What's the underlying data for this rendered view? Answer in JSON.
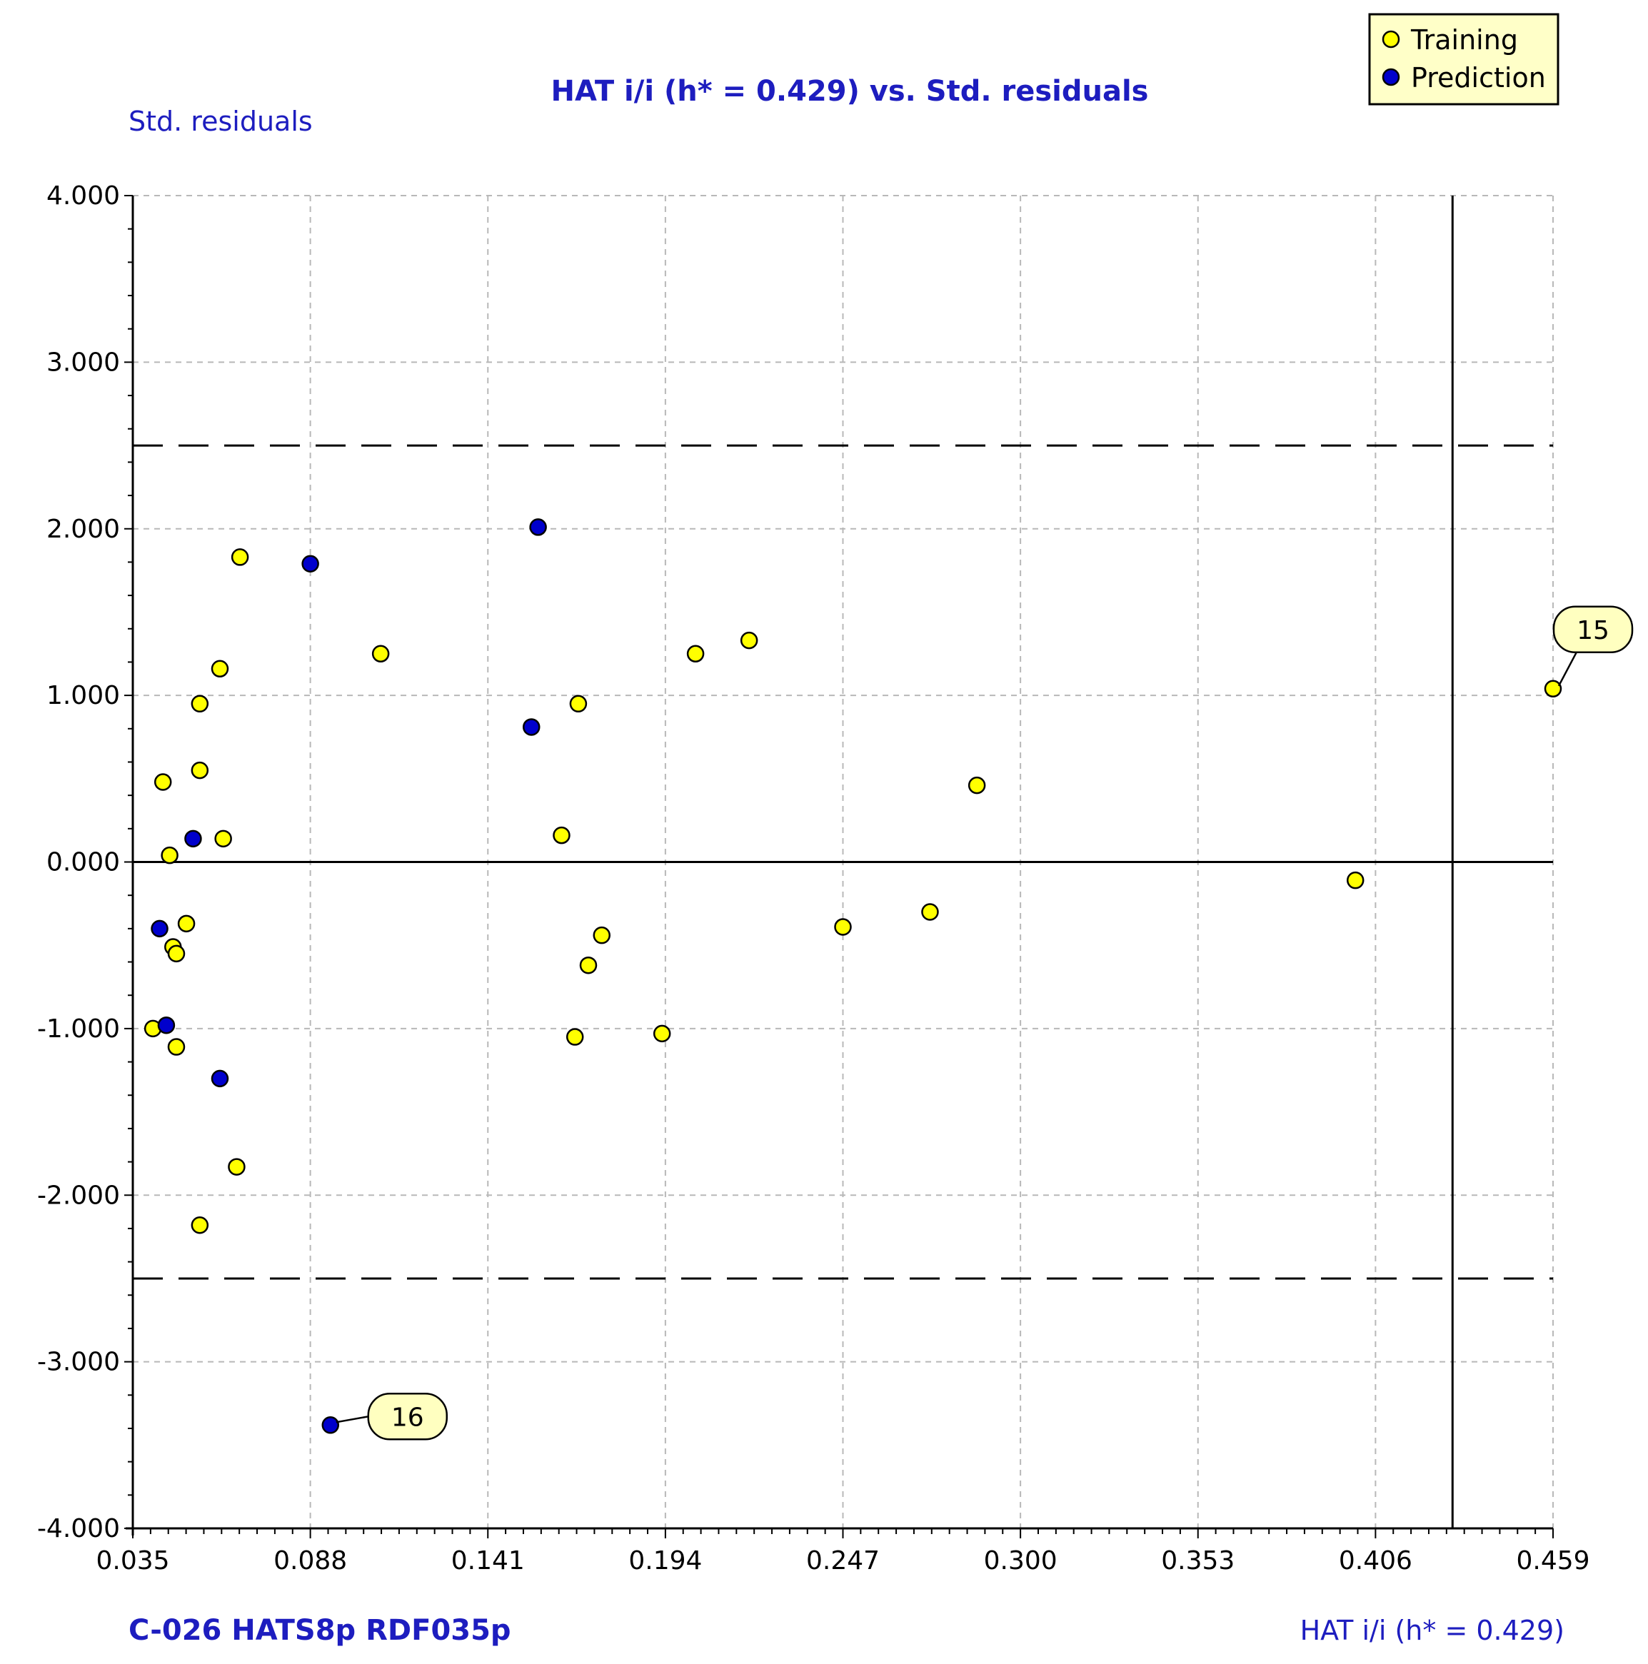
{
  "chart_data": {
    "type": "scatter",
    "title": "HAT i/i (h* = 0.429) vs. Std. residuals",
    "ylabel": "Std. residuals",
    "xlabel": "HAT i/i (h* = 0.429)",
    "model_label": "C-026  HATS8p  RDF035p",
    "xlim": [
      0.035,
      0.459
    ],
    "ylim": [
      -4.0,
      4.0
    ],
    "x_ticks": [
      "0.035",
      "0.088",
      "0.141",
      "0.194",
      "0.247",
      "0.300",
      "0.353",
      "0.406",
      "0.459"
    ],
    "x_tick_values": [
      0.035,
      0.088,
      0.141,
      0.194,
      0.247,
      0.3,
      0.353,
      0.406,
      0.459
    ],
    "y_ticks": [
      "4.000",
      "3.000",
      "2.000",
      "1.000",
      "0.000",
      "-1.000",
      "-2.000",
      "-3.000",
      "-4.000"
    ],
    "y_tick_values": [
      4.0,
      3.0,
      2.0,
      1.0,
      0.0,
      -1.0,
      -2.0,
      -3.0,
      -4.0
    ],
    "grid": true,
    "legend_position": "top-right",
    "reference_lines": {
      "residual_limits": [
        2.5,
        -2.5
      ],
      "h_star": 0.429
    },
    "colors": {
      "training": "#ffff00",
      "prediction": "#0000cc",
      "title": "#1d1dbf",
      "grid": "#b8b8b8",
      "callout": "#ffffc0"
    },
    "series": [
      {
        "name": "Training",
        "points": [
          {
            "x": 0.459,
            "y": 1.04,
            "label": "15"
          },
          {
            "x": 0.067,
            "y": 1.83
          },
          {
            "x": 0.109,
            "y": 1.25
          },
          {
            "x": 0.061,
            "y": 1.16
          },
          {
            "x": 0.055,
            "y": 0.95
          },
          {
            "x": 0.055,
            "y": 0.55
          },
          {
            "x": 0.044,
            "y": 0.48
          },
          {
            "x": 0.062,
            "y": 0.14
          },
          {
            "x": 0.046,
            "y": 0.04
          },
          {
            "x": 0.051,
            "y": -0.37
          },
          {
            "x": 0.047,
            "y": -0.51
          },
          {
            "x": 0.048,
            "y": -0.55
          },
          {
            "x": 0.041,
            "y": -1.0
          },
          {
            "x": 0.048,
            "y": -1.11
          },
          {
            "x": 0.066,
            "y": -1.83
          },
          {
            "x": 0.055,
            "y": -2.18
          },
          {
            "x": 0.168,
            "y": 0.95
          },
          {
            "x": 0.163,
            "y": 0.16
          },
          {
            "x": 0.175,
            "y": -0.44
          },
          {
            "x": 0.171,
            "y": -0.62
          },
          {
            "x": 0.167,
            "y": -1.05
          },
          {
            "x": 0.193,
            "y": -1.03
          },
          {
            "x": 0.203,
            "y": 1.25
          },
          {
            "x": 0.219,
            "y": 1.33
          },
          {
            "x": 0.247,
            "y": -0.39
          },
          {
            "x": 0.273,
            "y": -0.3
          },
          {
            "x": 0.287,
            "y": 0.46
          },
          {
            "x": 0.4,
            "y": -0.11
          }
        ]
      },
      {
        "name": "Prediction",
        "points": [
          {
            "x": 0.156,
            "y": 2.01
          },
          {
            "x": 0.088,
            "y": 1.79
          },
          {
            "x": 0.154,
            "y": 0.81
          },
          {
            "x": 0.053,
            "y": 0.14
          },
          {
            "x": 0.043,
            "y": -0.4
          },
          {
            "x": 0.045,
            "y": -0.98
          },
          {
            "x": 0.061,
            "y": -1.3
          },
          {
            "x": 0.094,
            "y": -3.38,
            "label": "16"
          }
        ]
      }
    ]
  }
}
